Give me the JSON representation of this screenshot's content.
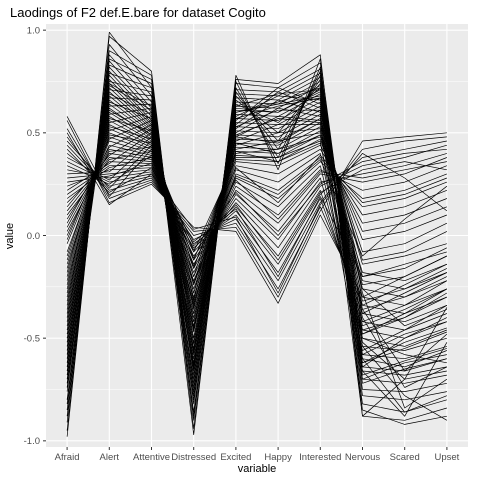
{
  "chart_data": {
    "type": "line",
    "title": "Laodings of F2 def.E.bare for dataset Cogito",
    "xlabel": "variable",
    "ylabel": "value",
    "categories": [
      "Afraid",
      "Alert",
      "Attentive",
      "Distressed",
      "Excited",
      "Happy",
      "Interested",
      "Nervous",
      "Scared",
      "Upset"
    ],
    "y_ticks": [
      "-1.0",
      "-0.5",
      "0.0",
      "0.5",
      "1.0"
    ],
    "y_tick_values": [
      -1.0,
      -0.5,
      0.0,
      0.5,
      1.0
    ],
    "ylim": [
      -1.03,
      1.03
    ],
    "grid": true,
    "panel_background": "#ebebeb",
    "grid_color": "#ffffff",
    "line_color": "#000000",
    "series": [
      {
        "values": [
          -0.98,
          0.99,
          0.72,
          -0.97,
          0.78,
          0.32,
          0.86,
          -0.68,
          -0.61,
          -0.55
        ]
      },
      {
        "values": [
          -0.91,
          0.93,
          0.68,
          -0.88,
          0.75,
          0.35,
          0.82,
          -0.62,
          -0.55,
          -0.47
        ]
      },
      {
        "values": [
          -0.85,
          0.88,
          0.65,
          -0.8,
          0.72,
          0.38,
          0.8,
          -0.58,
          -0.48,
          -0.42
        ]
      },
      {
        "values": [
          -0.8,
          0.85,
          0.62,
          -0.76,
          0.7,
          0.42,
          0.78,
          -0.72,
          -0.65,
          -0.6
        ]
      },
      {
        "values": [
          -0.76,
          0.82,
          0.6,
          -0.72,
          0.68,
          0.46,
          0.76,
          -0.52,
          -0.7,
          -0.35
        ]
      },
      {
        "values": [
          -0.72,
          0.8,
          0.58,
          -0.7,
          0.66,
          0.5,
          0.74,
          -0.48,
          -0.4,
          -0.3
        ]
      },
      {
        "values": [
          -0.68,
          0.78,
          0.56,
          -0.66,
          0.64,
          0.55,
          0.72,
          -0.44,
          -0.36,
          -0.26
        ]
      },
      {
        "values": [
          -0.64,
          0.76,
          0.55,
          -0.63,
          0.62,
          0.6,
          0.7,
          -0.4,
          -0.74,
          -0.64
        ]
      },
      {
        "values": [
          -0.6,
          0.74,
          0.54,
          -0.6,
          0.6,
          0.64,
          0.68,
          -0.36,
          -0.3,
          -0.2
        ]
      },
      {
        "values": [
          -0.56,
          0.72,
          0.53,
          -0.58,
          0.58,
          0.68,
          0.66,
          -0.32,
          -0.26,
          -0.16
        ]
      },
      {
        "values": [
          -0.52,
          0.7,
          0.52,
          -0.55,
          0.56,
          0.72,
          0.64,
          -0.28,
          -0.84,
          -0.7
        ]
      },
      {
        "values": [
          -0.48,
          0.68,
          0.51,
          -0.52,
          0.54,
          0.7,
          0.62,
          -0.24,
          -0.2,
          -0.1
        ]
      },
      {
        "values": [
          -0.44,
          0.66,
          0.5,
          -0.5,
          0.52,
          0.66,
          0.6,
          -0.2,
          -0.16,
          -0.06
        ]
      },
      {
        "values": [
          -0.4,
          0.64,
          0.49,
          -0.47,
          0.5,
          0.62,
          0.58,
          -0.62,
          -0.52,
          -0.45
        ]
      },
      {
        "values": [
          -0.36,
          0.62,
          0.48,
          -0.44,
          0.48,
          0.58,
          0.56,
          -0.12,
          -0.08,
          0.02
        ]
      },
      {
        "values": [
          -0.32,
          0.6,
          0.47,
          -0.42,
          0.46,
          0.54,
          0.54,
          -0.08,
          -0.04,
          0.06
        ]
      },
      {
        "values": [
          -0.28,
          0.58,
          0.46,
          -0.4,
          0.44,
          0.5,
          0.52,
          -0.66,
          -0.88,
          -0.52
        ]
      },
      {
        "values": [
          -0.24,
          0.56,
          0.45,
          -0.38,
          0.42,
          0.46,
          0.5,
          -0.02,
          0.02,
          0.1
        ]
      },
      {
        "values": [
          -0.2,
          0.54,
          0.44,
          -0.35,
          0.4,
          0.42,
          0.48,
          0.02,
          0.06,
          0.14
        ]
      },
      {
        "values": [
          -0.16,
          0.52,
          0.43,
          -0.33,
          0.38,
          0.38,
          0.46,
          -0.7,
          -0.62,
          -0.58
        ]
      },
      {
        "values": [
          -0.12,
          0.5,
          0.42,
          -0.3,
          0.36,
          0.34,
          0.44,
          0.06,
          0.1,
          0.18
        ]
      },
      {
        "values": [
          -0.08,
          0.48,
          0.41,
          -0.28,
          0.34,
          0.3,
          0.42,
          0.1,
          0.14,
          0.22
        ]
      },
      {
        "values": [
          -0.04,
          0.46,
          0.4,
          -0.26,
          0.32,
          0.26,
          0.4,
          -0.56,
          -0.46,
          -0.34
        ]
      },
      {
        "values": [
          0.0,
          0.44,
          0.39,
          -0.24,
          0.3,
          0.22,
          0.38,
          0.14,
          0.18,
          0.26
        ]
      },
      {
        "values": [
          0.04,
          0.42,
          0.38,
          -0.22,
          0.28,
          0.18,
          0.36,
          0.18,
          0.22,
          0.3
        ]
      },
      {
        "values": [
          0.08,
          0.4,
          0.37,
          -0.2,
          0.26,
          0.14,
          0.34,
          -0.5,
          -0.58,
          -0.62
        ]
      },
      {
        "values": [
          0.12,
          0.38,
          0.36,
          -0.18,
          0.24,
          0.1,
          0.32,
          0.22,
          0.26,
          0.34
        ]
      },
      {
        "values": [
          0.16,
          0.36,
          0.35,
          -0.16,
          0.22,
          0.06,
          0.3,
          0.26,
          0.3,
          0.38
        ]
      },
      {
        "values": [
          0.2,
          0.34,
          0.34,
          -0.14,
          0.2,
          0.02,
          0.28,
          -0.46,
          -0.4,
          -0.28
        ]
      },
      {
        "values": [
          0.24,
          0.32,
          0.33,
          -0.12,
          0.18,
          -0.02,
          0.26,
          0.3,
          0.34,
          0.4
        ]
      },
      {
        "values": [
          0.28,
          0.3,
          0.32,
          -0.1,
          0.16,
          -0.06,
          0.24,
          0.34,
          0.38,
          0.44
        ]
      },
      {
        "values": [
          0.32,
          0.28,
          0.31,
          -0.08,
          0.14,
          -0.1,
          0.22,
          -0.42,
          -0.34,
          -0.22
        ]
      },
      {
        "values": [
          0.36,
          0.26,
          0.3,
          -0.06,
          0.12,
          -0.14,
          0.2,
          0.38,
          0.42,
          0.46
        ]
      },
      {
        "values": [
          0.4,
          0.24,
          0.29,
          -0.04,
          0.1,
          -0.18,
          0.18,
          -0.38,
          -0.28,
          -0.18
        ]
      },
      {
        "values": [
          0.44,
          0.22,
          0.28,
          -0.02,
          0.08,
          -0.22,
          0.16,
          0.42,
          0.46,
          0.48
        ]
      },
      {
        "values": [
          0.48,
          0.2,
          0.27,
          0.0,
          0.06,
          -0.26,
          0.14,
          -0.34,
          -0.24,
          -0.14
        ]
      },
      {
        "values": [
          0.52,
          0.18,
          0.26,
          0.02,
          0.04,
          -0.3,
          0.12,
          0.46,
          0.48,
          0.5
        ]
      },
      {
        "values": [
          0.56,
          0.16,
          0.25,
          0.04,
          0.02,
          -0.33,
          0.1,
          -0.3,
          -0.2,
          -0.1
        ]
      },
      {
        "values": [
          -0.95,
          0.97,
          0.8,
          -0.94,
          0.76,
          0.74,
          0.88,
          -0.88,
          -0.9,
          -0.84
        ]
      },
      {
        "values": [
          -0.88,
          0.9,
          0.78,
          -0.9,
          0.74,
          0.72,
          0.84,
          -0.85,
          -0.92,
          -0.88
        ]
      },
      {
        "values": [
          -0.82,
          0.86,
          0.76,
          -0.86,
          0.71,
          0.7,
          0.81,
          -0.82,
          -0.86,
          -0.8
        ]
      },
      {
        "values": [
          -0.74,
          0.83,
          0.74,
          -0.82,
          0.69,
          0.68,
          0.79,
          -0.78,
          -0.8,
          -0.76
        ]
      },
      {
        "values": [
          -0.66,
          0.79,
          0.72,
          -0.78,
          0.67,
          0.66,
          0.77,
          -0.75,
          -0.76,
          -0.72
        ]
      },
      {
        "values": [
          -0.58,
          0.75,
          0.7,
          -0.74,
          0.65,
          0.64,
          0.75,
          -0.7,
          -0.72,
          -0.68
        ]
      },
      {
        "values": [
          -0.5,
          0.71,
          0.68,
          -0.68,
          0.63,
          0.62,
          0.73,
          -0.66,
          -0.68,
          -0.64
        ]
      },
      {
        "values": [
          -0.42,
          0.67,
          0.66,
          -0.62,
          0.61,
          0.6,
          0.71,
          -0.64,
          -0.66,
          -0.6
        ]
      },
      {
        "values": [
          -0.34,
          0.63,
          0.64,
          -0.56,
          0.59,
          0.58,
          0.69,
          -0.6,
          -0.64,
          -0.56
        ]
      },
      {
        "values": [
          -0.26,
          0.59,
          0.62,
          -0.5,
          0.57,
          0.56,
          0.67,
          -0.58,
          -0.6,
          -0.54
        ]
      },
      {
        "values": [
          -0.18,
          0.55,
          0.6,
          -0.46,
          0.55,
          0.54,
          0.65,
          -0.54,
          -0.56,
          -0.5
        ]
      },
      {
        "values": [
          -0.1,
          0.51,
          0.58,
          -0.42,
          0.53,
          0.52,
          0.63,
          -0.5,
          -0.54,
          -0.46
        ]
      },
      {
        "values": [
          -0.02,
          0.47,
          0.56,
          -0.36,
          0.51,
          0.5,
          0.61,
          -0.46,
          -0.5,
          -0.42
        ]
      },
      {
        "values": [
          0.06,
          0.43,
          0.54,
          -0.32,
          0.49,
          0.48,
          0.59,
          -0.42,
          -0.46,
          -0.38
        ]
      },
      {
        "values": [
          0.14,
          0.39,
          0.52,
          -0.28,
          0.47,
          0.46,
          0.57,
          -0.38,
          -0.42,
          -0.34
        ]
      },
      {
        "values": [
          0.22,
          0.35,
          0.5,
          -0.24,
          0.45,
          0.44,
          0.55,
          -0.34,
          -0.38,
          -0.3
        ]
      },
      {
        "values": [
          0.3,
          0.31,
          0.48,
          -0.2,
          0.43,
          0.42,
          0.53,
          -0.3,
          -0.34,
          -0.26
        ]
      },
      {
        "values": [
          0.38,
          0.27,
          0.46,
          -0.16,
          0.41,
          0.4,
          0.51,
          -0.26,
          -0.3,
          -0.22
        ]
      },
      {
        "values": [
          0.46,
          0.23,
          0.44,
          -0.12,
          0.39,
          0.38,
          0.49,
          -0.22,
          -0.26,
          -0.18
        ]
      },
      {
        "values": [
          0.58,
          0.19,
          0.42,
          -0.08,
          0.37,
          0.36,
          0.47,
          -0.18,
          -0.22,
          -0.14
        ]
      },
      {
        "values": [
          -0.7,
          0.74,
          0.63,
          -0.65,
          0.6,
          0.65,
          0.72,
          -0.88,
          -0.7,
          -0.66
        ]
      },
      {
        "values": [
          -0.3,
          0.57,
          0.51,
          -0.38,
          0.48,
          0.45,
          0.57,
          -0.14,
          -0.1,
          -0.04
        ]
      },
      {
        "values": [
          0.1,
          0.37,
          0.41,
          -0.15,
          0.33,
          0.16,
          0.39,
          0.16,
          0.2,
          0.28
        ]
      },
      {
        "values": [
          -0.54,
          0.69,
          0.59,
          -0.57,
          0.57,
          0.63,
          0.67,
          -0.6,
          -0.86,
          -0.78
        ]
      },
      {
        "values": [
          0.18,
          0.33,
          0.38,
          -0.11,
          0.27,
          0.08,
          0.31,
          0.28,
          0.32,
          0.36
        ]
      },
      {
        "values": [
          -0.14,
          0.49,
          0.45,
          -0.31,
          0.41,
          0.36,
          0.45,
          -0.48,
          -0.38,
          -0.26
        ]
      },
      {
        "values": [
          0.26,
          0.29,
          0.35,
          -0.07,
          0.21,
          0.0,
          0.25,
          0.36,
          0.4,
          0.42
        ]
      },
      {
        "values": [
          -0.38,
          0.61,
          0.49,
          -0.45,
          0.49,
          0.57,
          0.55,
          -0.64,
          -0.5,
          -0.4
        ]
      },
      {
        "values": [
          0.5,
          0.15,
          0.3,
          0.03,
          0.09,
          -0.28,
          0.15,
          0.4,
          0.28,
          0.12
        ]
      },
      {
        "values": [
          0.42,
          0.21,
          0.33,
          -0.03,
          0.13,
          -0.2,
          0.19,
          -0.2,
          -0.14,
          -0.08
        ]
      },
      {
        "values": [
          -0.62,
          0.73,
          0.61,
          -0.64,
          0.63,
          0.69,
          0.71,
          -0.54,
          -0.78,
          -0.9
        ]
      },
      {
        "values": [
          -0.46,
          0.65,
          0.57,
          -0.53,
          0.53,
          0.61,
          0.61,
          -0.26,
          -0.44,
          -0.36
        ]
      },
      {
        "values": [
          0.02,
          0.41,
          0.43,
          -0.23,
          0.29,
          0.2,
          0.37,
          -0.1,
          0.08,
          0.24
        ]
      },
      {
        "values": [
          0.34,
          0.25,
          0.39,
          -0.05,
          0.15,
          -0.12,
          0.21,
          0.32,
          0.36,
          0.32
        ]
      },
      {
        "values": [
          -0.22,
          0.53,
          0.47,
          -0.34,
          0.45,
          0.4,
          0.49,
          -0.36,
          -0.66,
          -0.48
        ]
      }
    ]
  }
}
